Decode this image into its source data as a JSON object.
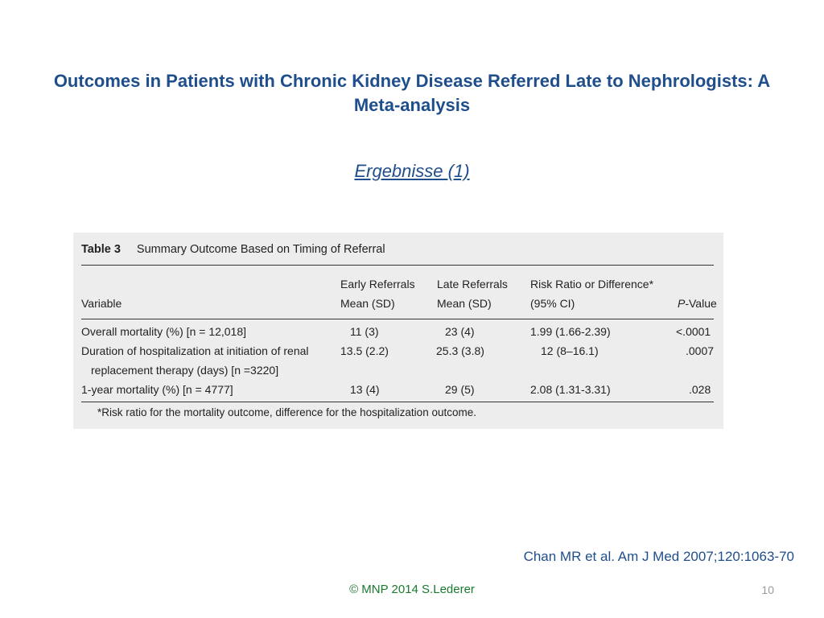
{
  "slide": {
    "title": "Outcomes in Patients with Chronic Kidney Disease Referred Late to Nephrologists: A Meta-analysis",
    "subtitle": "Ergebnisse (1)",
    "citation": "Chan MR et al. Am J Med 2007;120:1063-70",
    "footer": "© MNP 2014 S.Lederer",
    "page_number": "10"
  },
  "table": {
    "label": "Table 3",
    "caption": "Summary Outcome Based on Timing of Referral",
    "headers": {
      "variable": "Variable",
      "early_1": "Early Referrals",
      "early_2": "Mean (SD)",
      "late_1": "Late Referrals",
      "late_2": "Mean (SD)",
      "risk_1": "Risk Ratio or Difference*",
      "risk_2": "(95% CI)",
      "p_italic": "P",
      "p_rest": "-Value"
    },
    "rows": [
      {
        "variable": "Overall mortality (%) [n = 12,018]",
        "early": "11 (3)",
        "late": "23 (4)",
        "risk": "1.99 (1.66-2.39)",
        "p": "<.0001"
      },
      {
        "variable": "Duration of hospitalization at initiation of renal",
        "variable_2": "replacement therapy (days) [n =3220]",
        "early": "13.5 (2.2)",
        "late": "25.3 (3.8)",
        "risk": "12 (8–16.1)",
        "p": ".0007"
      },
      {
        "variable": "1-year mortality (%) [n = 4777]",
        "early": "13 (4)",
        "late": "29 (5)",
        "risk": "2.08 (1.31-3.31)",
        "p": ".028"
      }
    ],
    "footnote": "*Risk ratio for the mortality outcome, difference for the hospitalization outcome."
  }
}
